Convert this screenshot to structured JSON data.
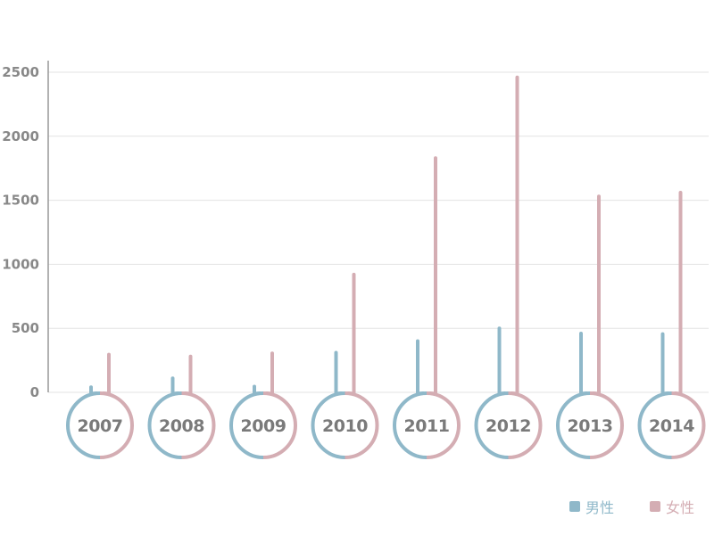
{
  "chart_data": {
    "type": "bar",
    "categories": [
      "2007",
      "2008",
      "2009",
      "2010",
      "2011",
      "2012",
      "2013",
      "2014"
    ],
    "series": [
      {
        "name": "男性",
        "color": "#8fb8c9",
        "values": [
          40,
          110,
          45,
          310,
          400,
          500,
          460,
          455
        ]
      },
      {
        "name": "女性",
        "color": "#d4adb3",
        "values": [
          295,
          280,
          305,
          920,
          1830,
          2460,
          1530,
          1560
        ]
      }
    ],
    "yticks": [
      0,
      500,
      1000,
      1500,
      2000,
      2500
    ],
    "ylim": [
      0,
      2500
    ],
    "grid": true,
    "legend": "bottom-right"
  }
}
